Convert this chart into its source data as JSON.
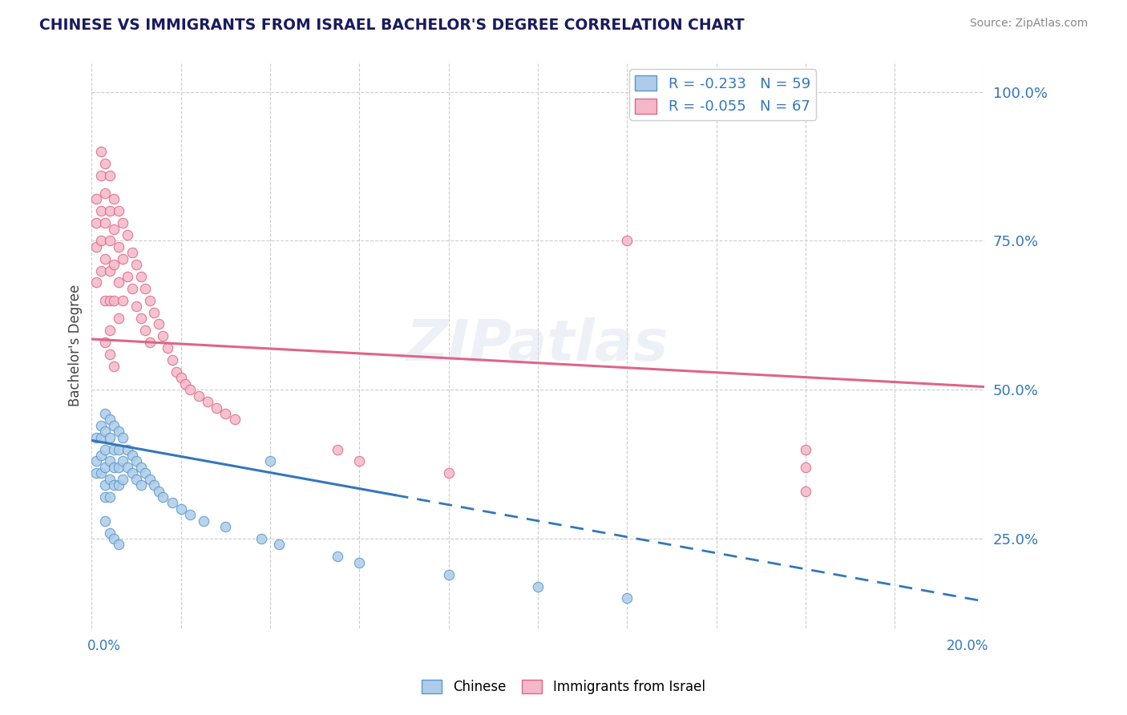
{
  "title": "CHINESE VS IMMIGRANTS FROM ISRAEL BACHELOR'S DEGREE CORRELATION CHART",
  "source": "Source: ZipAtlas.com",
  "ylabel": "Bachelor's Degree",
  "ytick_vals": [
    0.25,
    0.5,
    0.75,
    1.0
  ],
  "ytick_labels": [
    "25.0%",
    "50.0%",
    "75.0%",
    "100.0%"
  ],
  "blue_r": "-0.233",
  "blue_n": "59",
  "pink_r": "-0.055",
  "pink_n": "67",
  "blue_fill": "#aecce8",
  "blue_edge": "#5599cc",
  "blue_line": "#3377bb",
  "pink_fill": "#f4b8c8",
  "pink_edge": "#dd6688",
  "pink_line": "#dd6688",
  "watermark": "ZIPatlas",
  "xmin": 0.0,
  "xmax": 0.2,
  "ymin": 0.1,
  "ymax": 1.05,
  "blue_scatter_x": [
    0.001,
    0.001,
    0.001,
    0.002,
    0.002,
    0.002,
    0.002,
    0.003,
    0.003,
    0.003,
    0.003,
    0.003,
    0.003,
    0.004,
    0.004,
    0.004,
    0.004,
    0.004,
    0.005,
    0.005,
    0.005,
    0.005,
    0.006,
    0.006,
    0.006,
    0.006,
    0.007,
    0.007,
    0.007,
    0.008,
    0.008,
    0.009,
    0.009,
    0.01,
    0.01,
    0.011,
    0.011,
    0.012,
    0.013,
    0.014,
    0.015,
    0.016,
    0.018,
    0.02,
    0.022,
    0.025,
    0.03,
    0.038,
    0.042,
    0.055,
    0.06,
    0.08,
    0.1,
    0.12,
    0.003,
    0.004,
    0.005,
    0.006,
    0.04
  ],
  "blue_scatter_y": [
    0.42,
    0.38,
    0.36,
    0.44,
    0.42,
    0.39,
    0.36,
    0.46,
    0.43,
    0.4,
    0.37,
    0.34,
    0.32,
    0.45,
    0.42,
    0.38,
    0.35,
    0.32,
    0.44,
    0.4,
    0.37,
    0.34,
    0.43,
    0.4,
    0.37,
    0.34,
    0.42,
    0.38,
    0.35,
    0.4,
    0.37,
    0.39,
    0.36,
    0.38,
    0.35,
    0.37,
    0.34,
    0.36,
    0.35,
    0.34,
    0.33,
    0.32,
    0.31,
    0.3,
    0.29,
    0.28,
    0.27,
    0.25,
    0.24,
    0.22,
    0.21,
    0.19,
    0.17,
    0.15,
    0.28,
    0.26,
    0.25,
    0.24,
    0.38
  ],
  "pink_scatter_x": [
    0.001,
    0.001,
    0.001,
    0.001,
    0.002,
    0.002,
    0.002,
    0.002,
    0.002,
    0.003,
    0.003,
    0.003,
    0.003,
    0.003,
    0.004,
    0.004,
    0.004,
    0.004,
    0.004,
    0.004,
    0.005,
    0.005,
    0.005,
    0.005,
    0.006,
    0.006,
    0.006,
    0.006,
    0.007,
    0.007,
    0.007,
    0.008,
    0.008,
    0.009,
    0.009,
    0.01,
    0.01,
    0.011,
    0.011,
    0.012,
    0.012,
    0.013,
    0.013,
    0.014,
    0.015,
    0.016,
    0.017,
    0.018,
    0.019,
    0.02,
    0.021,
    0.022,
    0.024,
    0.026,
    0.028,
    0.03,
    0.032,
    0.003,
    0.004,
    0.005,
    0.12,
    0.16,
    0.16,
    0.16,
    0.055,
    0.06,
    0.08
  ],
  "pink_scatter_y": [
    0.82,
    0.78,
    0.74,
    0.68,
    0.9,
    0.86,
    0.8,
    0.75,
    0.7,
    0.88,
    0.83,
    0.78,
    0.72,
    0.65,
    0.86,
    0.8,
    0.75,
    0.7,
    0.65,
    0.6,
    0.82,
    0.77,
    0.71,
    0.65,
    0.8,
    0.74,
    0.68,
    0.62,
    0.78,
    0.72,
    0.65,
    0.76,
    0.69,
    0.73,
    0.67,
    0.71,
    0.64,
    0.69,
    0.62,
    0.67,
    0.6,
    0.65,
    0.58,
    0.63,
    0.61,
    0.59,
    0.57,
    0.55,
    0.53,
    0.52,
    0.51,
    0.5,
    0.49,
    0.48,
    0.47,
    0.46,
    0.45,
    0.58,
    0.56,
    0.54,
    0.75,
    0.4,
    0.37,
    0.33,
    0.4,
    0.38,
    0.36
  ]
}
